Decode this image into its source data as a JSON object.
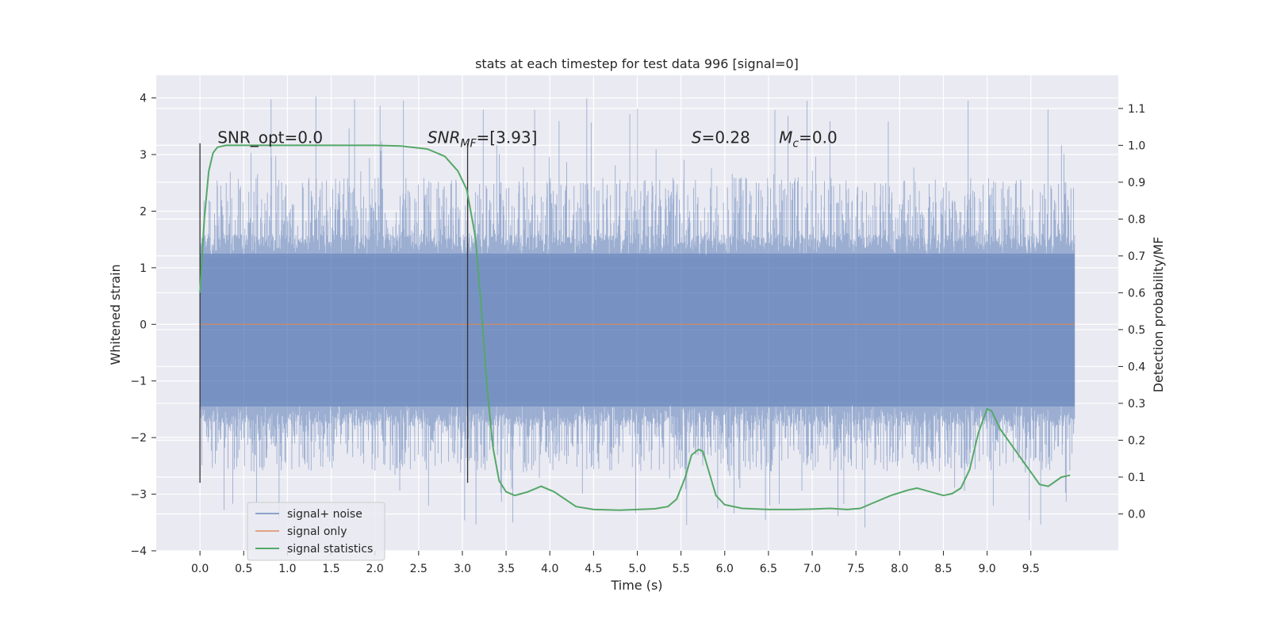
{
  "chart_data": {
    "type": "line",
    "title": "stats at each timestep for test data 996 [signal=0]",
    "xlabel": "Time (s)",
    "ylabel": "Whitened strain",
    "ylabel_right": "Detection probability/MF",
    "xlim": [
      -0.5,
      10.5
    ],
    "ylim": [
      -4,
      4.4
    ],
    "ylim_right": [
      -0.1,
      1.19
    ],
    "x_ticks": [
      0.0,
      0.5,
      1.0,
      1.5,
      2.0,
      2.5,
      3.0,
      3.5,
      4.0,
      4.5,
      5.0,
      5.5,
      6.0,
      6.5,
      7.0,
      7.5,
      8.0,
      8.5,
      9.0,
      9.5
    ],
    "x_tick_labels": [
      "0.0",
      "0.5",
      "1.0",
      "1.5",
      "2.0",
      "2.5",
      "3.0",
      "3.5",
      "4.0",
      "4.5",
      "5.0",
      "5.5",
      "6.0",
      "6.5",
      "7.0",
      "7.5",
      "8.0",
      "8.5",
      "9.0",
      "9.5"
    ],
    "y_ticks": [
      -4,
      -3,
      -2,
      -1,
      0,
      1,
      2,
      3,
      4
    ],
    "y_tick_labels": [
      "−4",
      "−3",
      "−2",
      "−1",
      "0",
      "1",
      "2",
      "3",
      "4"
    ],
    "y_ticks_right": [
      0.0,
      0.1,
      0.2,
      0.3,
      0.4,
      0.5,
      0.6,
      0.7,
      0.8,
      0.9,
      1.0,
      1.1
    ],
    "y_tick_labels_right": [
      "0.0",
      "0.1",
      "0.2",
      "0.3",
      "0.4",
      "0.5",
      "0.6",
      "0.7",
      "0.8",
      "0.9",
      "1.0",
      "1.1"
    ],
    "grid": true,
    "legend_position": "lower-left",
    "colors": {
      "background": "#EAEAF2",
      "noise": "#4C72B0",
      "signal": "#DD8452",
      "stats": "#55A868",
      "vline": "#333333"
    },
    "noise_trace": {
      "x_range": [
        0.0,
        10.0
      ],
      "typical_range": [
        -1.6,
        1.4
      ],
      "envelope_range": [
        -2.6,
        2.6
      ],
      "peak_range": [
        -3.6,
        4.05
      ]
    },
    "series": [
      {
        "name": "signal+ noise",
        "axis": "left"
      },
      {
        "name": "signal only",
        "axis": "left",
        "x": [
          0.0,
          10.0
        ],
        "y": [
          0.0,
          0.0
        ]
      },
      {
        "name": "signal statistics",
        "axis": "right",
        "x": [
          0.0,
          0.05,
          0.1,
          0.15,
          0.2,
          0.3,
          0.5,
          1.0,
          1.5,
          2.0,
          2.3,
          2.6,
          2.8,
          2.95,
          3.05,
          3.15,
          3.22,
          3.28,
          3.35,
          3.42,
          3.5,
          3.6,
          3.75,
          3.9,
          4.05,
          4.3,
          4.5,
          4.8,
          5.0,
          5.2,
          5.35,
          5.45,
          5.55,
          5.62,
          5.7,
          5.75,
          5.8,
          5.85,
          5.9,
          6.0,
          6.2,
          6.5,
          6.8,
          7.0,
          7.2,
          7.4,
          7.55,
          7.7,
          7.9,
          8.1,
          8.2,
          8.35,
          8.5,
          8.6,
          8.7,
          8.8,
          8.9,
          9.0,
          9.05,
          9.15,
          9.3,
          9.45,
          9.6,
          9.7,
          9.85,
          9.95
        ],
        "y": [
          0.6,
          0.8,
          0.93,
          0.98,
          0.995,
          1.0,
          1.0,
          1.0,
          1.0,
          1.0,
          0.998,
          0.99,
          0.97,
          0.93,
          0.88,
          0.75,
          0.55,
          0.35,
          0.18,
          0.09,
          0.06,
          0.05,
          0.06,
          0.075,
          0.06,
          0.02,
          0.012,
          0.01,
          0.012,
          0.014,
          0.02,
          0.04,
          0.1,
          0.16,
          0.175,
          0.17,
          0.13,
          0.09,
          0.05,
          0.025,
          0.015,
          0.012,
          0.012,
          0.013,
          0.015,
          0.012,
          0.015,
          0.03,
          0.05,
          0.065,
          0.07,
          0.06,
          0.05,
          0.055,
          0.07,
          0.12,
          0.22,
          0.285,
          0.28,
          0.23,
          0.18,
          0.13,
          0.08,
          0.075,
          0.1,
          0.105
        ]
      }
    ],
    "vertical_lines": [
      {
        "x": 0.0,
        "y_range": [
          -2.8,
          3.2
        ]
      },
      {
        "x": 3.06,
        "y_range": [
          -2.8,
          3.2
        ]
      }
    ],
    "annotations": [
      {
        "id": "snr-opt",
        "text": "SNR_opt=0.0",
        "x": 0.2,
        "y": 3.2
      },
      {
        "id": "snr-mf",
        "text_base": "SNR",
        "text_sub": "MF",
        "text_rest": "=[3.93]",
        "x": 2.6,
        "y": 3.2
      },
      {
        "id": "s-stat",
        "text_base": "S",
        "text_rest": "=0.28",
        "x": 5.62,
        "y": 3.2
      },
      {
        "id": "mc-stat",
        "text_base": "M",
        "text_sub": "c",
        "text_rest": "=0.0",
        "x": 6.62,
        "y": 3.2
      }
    ]
  }
}
